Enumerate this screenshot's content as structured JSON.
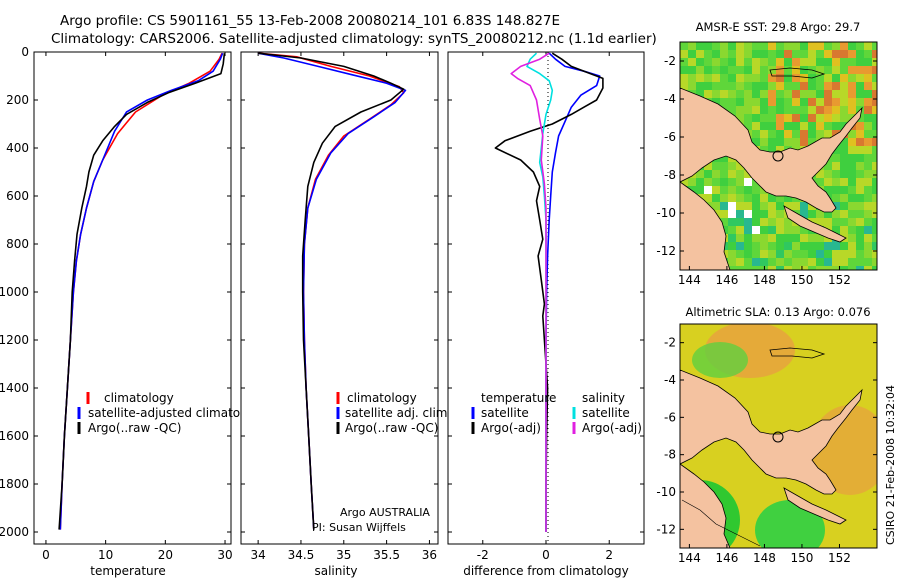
{
  "title_line1": "Argo profile: CS 5901161_55 13-Feb-2008 20080214_101 6.83S 148.827E",
  "title_line2": "Climatology: CARS2006. Satellite-adjusted climatology: synTS_20080212.nc (1.1d earlier)",
  "side_text": "CSIRO 21-Feb-2008 10:32:04",
  "colors": {
    "clim": "#ff0000",
    "sat": "#0000ff",
    "argo": "#000000",
    "sal_sat": "#00e0e0",
    "sal_argo": "#e020e0",
    "land": "#f4c2a0"
  },
  "chart_data": [
    {
      "type": "line",
      "id": "temp",
      "xlabel": "temperature",
      "xlim": [
        -2,
        31
      ],
      "ylim": [
        0,
        2050
      ],
      "xticks": [
        0,
        10,
        20,
        30
      ],
      "yticks": [
        0,
        200,
        400,
        600,
        800,
        1000,
        1200,
        1400,
        1600,
        1800,
        2000
      ],
      "legend": [
        "climatology",
        "satellite-adjusted climatology",
        "Argo(..raw -QC)"
      ],
      "series": [
        {
          "name": "climatology",
          "color": "clim",
          "points": [
            [
              29.5,
              5
            ],
            [
              29.0,
              30
            ],
            [
              27.5,
              80
            ],
            [
              24,
              130
            ],
            [
              19.5,
              180
            ],
            [
              15,
              250
            ],
            [
              12,
              340
            ],
            [
              9.5,
              450
            ],
            [
              8,
              540
            ],
            [
              6.8,
              650
            ],
            [
              5.8,
              760
            ],
            [
              5.1,
              870
            ],
            [
              4.6,
              1000
            ],
            [
              4.1,
              1200
            ],
            [
              3.6,
              1400
            ],
            [
              3.1,
              1600
            ],
            [
              2.7,
              1800
            ],
            [
              2.4,
              1990
            ]
          ]
        },
        {
          "name": "satellite-adjusted climatology",
          "color": "sat",
          "points": [
            [
              29.6,
              5
            ],
            [
              29.2,
              30
            ],
            [
              28,
              80
            ],
            [
              25.5,
              120
            ],
            [
              21,
              160
            ],
            [
              17,
              200
            ],
            [
              13.5,
              250
            ],
            [
              11.5,
              330
            ],
            [
              9.5,
              450
            ],
            [
              8,
              540
            ],
            [
              6.8,
              650
            ],
            [
              5.8,
              760
            ],
            [
              5.1,
              870
            ],
            [
              4.6,
              1000
            ],
            [
              4.1,
              1200
            ],
            [
              3.6,
              1400
            ],
            [
              3.1,
              1600
            ],
            [
              2.7,
              1800
            ],
            [
              2.4,
              1990
            ]
          ]
        },
        {
          "name": "Argo(..raw -QC)",
          "color": "argo",
          "points": [
            [
              29.9,
              5
            ],
            [
              29.7,
              50
            ],
            [
              29.3,
              90
            ],
            [
              25,
              130
            ],
            [
              20.5,
              170
            ],
            [
              17,
              210
            ],
            [
              13.5,
              260
            ],
            [
              11.5,
              310
            ],
            [
              9.5,
              370
            ],
            [
              8,
              430
            ],
            [
              7.2,
              500
            ],
            [
              6.8,
              560
            ],
            [
              6,
              650
            ],
            [
              5.2,
              760
            ],
            [
              4.8,
              870
            ],
            [
              4.4,
              1000
            ],
            [
              4.1,
              1200
            ],
            [
              3.6,
              1400
            ],
            [
              3.1,
              1600
            ],
            [
              2.7,
              1800
            ],
            [
              2.2,
              1990
            ]
          ]
        }
      ]
    },
    {
      "type": "line",
      "id": "sal",
      "xlabel": "salinity",
      "xlim": [
        33.8,
        36.1
      ],
      "ylim": [
        0,
        2050
      ],
      "xticks": [
        34,
        34.5,
        35,
        35.5,
        36
      ],
      "yticks": [
        0,
        200,
        400,
        600,
        800,
        1000,
        1200,
        1400,
        1600,
        1800,
        2000
      ],
      "legend": [
        "climatology",
        "satellite adj. clim.",
        "Argo(..raw -QC)"
      ],
      "annotations": [
        "Argo AUSTRALIA",
        "PI: Susan Wijffels"
      ],
      "series": [
        {
          "name": "climatology",
          "color": "clim",
          "points": [
            [
              34.0,
              5
            ],
            [
              34.45,
              20
            ],
            [
              34.85,
              60
            ],
            [
              35.3,
              100
            ],
            [
              35.65,
              145
            ],
            [
              35.7,
              170
            ],
            [
              35.55,
              220
            ],
            [
              35.3,
              280
            ],
            [
              35.0,
              350
            ],
            [
              34.82,
              430
            ],
            [
              34.67,
              530
            ],
            [
              34.58,
              650
            ],
            [
              34.54,
              800
            ],
            [
              34.53,
              1000
            ],
            [
              34.54,
              1200
            ],
            [
              34.56,
              1400
            ],
            [
              34.59,
              1600
            ],
            [
              34.62,
              1800
            ],
            [
              34.65,
              1990
            ]
          ]
        },
        {
          "name": "satellite adj. clim.",
          "color": "sat",
          "points": [
            [
              34.0,
              5
            ],
            [
              34.3,
              25
            ],
            [
              34.7,
              60
            ],
            [
              35.1,
              95
            ],
            [
              35.5,
              130
            ],
            [
              35.72,
              160
            ],
            [
              35.6,
              210
            ],
            [
              35.35,
              270
            ],
            [
              35.05,
              340
            ],
            [
              34.85,
              420
            ],
            [
              34.68,
              530
            ],
            [
              34.58,
              650
            ],
            [
              34.54,
              800
            ],
            [
              34.53,
              1000
            ],
            [
              34.54,
              1200
            ],
            [
              34.56,
              1400
            ],
            [
              34.59,
              1600
            ],
            [
              34.62,
              1800
            ],
            [
              34.65,
              1990
            ]
          ]
        },
        {
          "name": "Argo(..raw -QC)",
          "color": "argo",
          "points": [
            [
              34.0,
              5
            ],
            [
              34.5,
              25
            ],
            [
              35.0,
              60
            ],
            [
              35.35,
              100
            ],
            [
              35.55,
              130
            ],
            [
              35.7,
              155
            ],
            [
              35.55,
              200
            ],
            [
              35.2,
              250
            ],
            [
              34.9,
              310
            ],
            [
              34.75,
              380
            ],
            [
              34.65,
              460
            ],
            [
              34.58,
              560
            ],
            [
              34.55,
              700
            ],
            [
              34.52,
              850
            ],
            [
              34.52,
              1000
            ],
            [
              34.53,
              1200
            ],
            [
              34.56,
              1400
            ],
            [
              34.59,
              1600
            ],
            [
              34.62,
              1800
            ],
            [
              34.65,
              1990
            ]
          ]
        }
      ]
    },
    {
      "type": "line",
      "id": "diff",
      "xlabel": "difference from climatology",
      "xlim": [
        -3.1,
        3.1
      ],
      "ylim": [
        0,
        2050
      ],
      "xticks": [
        -2,
        0,
        2
      ],
      "yticks": [
        0,
        200,
        400,
        600,
        800,
        1000,
        1200,
        1400,
        1600,
        1800,
        2000
      ],
      "legend_left": [
        "temperature",
        "satellite",
        "Argo(-adj)"
      ],
      "legend_right": [
        "salinity",
        "satellite",
        "Argo(-adj)"
      ],
      "series": [
        {
          "name": "temperature satellite",
          "color": "sat",
          "points": [
            [
              0.1,
              5
            ],
            [
              0.3,
              30
            ],
            [
              0.6,
              60
            ],
            [
              1.2,
              80
            ],
            [
              1.7,
              100
            ],
            [
              1.6,
              140
            ],
            [
              1.1,
              180
            ],
            [
              0.8,
              230
            ],
            [
              0.6,
              290
            ],
            [
              0.4,
              350
            ],
            [
              0.3,
              420
            ],
            [
              0.2,
              500
            ],
            [
              0.15,
              600
            ],
            [
              0.1,
              700
            ],
            [
              0.05,
              850
            ],
            [
              0.02,
              1000
            ],
            [
              0,
              1200
            ],
            [
              0,
              1600
            ],
            [
              0,
              2000
            ]
          ]
        },
        {
          "name": "temperature Argo(-adj)",
          "color": "argo",
          "points": [
            [
              0.2,
              5
            ],
            [
              0.5,
              30
            ],
            [
              0.8,
              60
            ],
            [
              1.4,
              90
            ],
            [
              1.8,
              110
            ],
            [
              1.8,
              150
            ],
            [
              1.6,
              200
            ],
            [
              1.2,
              230
            ],
            [
              0.8,
              260
            ],
            [
              0.2,
              300
            ],
            [
              -0.5,
              330
            ],
            [
              -1.3,
              370
            ],
            [
              -1.6,
              400
            ],
            [
              -0.8,
              450
            ],
            [
              -0.4,
              500
            ],
            [
              -0.2,
              560
            ],
            [
              -0.3,
              620
            ],
            [
              -0.2,
              700
            ],
            [
              -0.1,
              780
            ],
            [
              -0.25,
              850
            ],
            [
              -0.15,
              950
            ],
            [
              -0.05,
              1050
            ],
            [
              -0.1,
              1100
            ],
            [
              -0.05,
              1200
            ],
            [
              0.05,
              1400
            ],
            [
              0.02,
              1600
            ],
            [
              0,
              1800
            ],
            [
              0,
              2000
            ]
          ]
        },
        {
          "name": "salinity satellite",
          "color": "sal_sat",
          "points": [
            [
              -0.3,
              5
            ],
            [
              -0.5,
              30
            ],
            [
              -0.6,
              60
            ],
            [
              -0.2,
              90
            ],
            [
              0.1,
              120
            ],
            [
              0.2,
              160
            ],
            [
              0.15,
              200
            ],
            [
              0,
              260
            ],
            [
              -0.1,
              340
            ],
            [
              -0.15,
              400
            ],
            [
              -0.2,
              460
            ],
            [
              -0.1,
              520
            ],
            [
              -0.05,
              600
            ],
            [
              0,
              700
            ],
            [
              0,
              1000
            ],
            [
              0,
              1500
            ],
            [
              0,
              2000
            ]
          ]
        },
        {
          "name": "salinity Argo(-adj)",
          "color": "sal_argo",
          "points": [
            [
              0.1,
              5
            ],
            [
              -0.2,
              30
            ],
            [
              -0.8,
              60
            ],
            [
              -1.1,
              90
            ],
            [
              -0.9,
              110
            ],
            [
              -0.5,
              140
            ],
            [
              -0.3,
              200
            ],
            [
              -0.2,
              280
            ],
            [
              -0.1,
              350
            ],
            [
              -0.15,
              450
            ],
            [
              -0.05,
              550
            ],
            [
              0,
              650
            ],
            [
              0,
              800
            ],
            [
              0,
              1000
            ],
            [
              0,
              1500
            ],
            [
              0,
              2000
            ]
          ]
        }
      ]
    },
    {
      "type": "heatmap",
      "id": "sst",
      "title": "AMSR-E SST: 29.8 Argo: 29.7",
      "xlim": [
        143.5,
        154
      ],
      "ylim": [
        -13,
        -1
      ],
      "xticks": [
        144,
        146,
        148,
        150,
        152
      ],
      "yticks": [
        -2,
        -4,
        -6,
        -8,
        -10,
        -12
      ],
      "marker": [
        148.83,
        -6.83
      ]
    },
    {
      "type": "heatmap",
      "id": "sla",
      "title": "Altimetric SLA: 0.13 Argo: 0.076",
      "xlim": [
        143.5,
        154
      ],
      "ylim": [
        -13,
        -1
      ],
      "xticks": [
        144,
        146,
        148,
        150,
        152
      ],
      "yticks": [
        -2,
        -4,
        -6,
        -8,
        -10,
        -12
      ],
      "marker": [
        148.83,
        -6.83
      ]
    }
  ]
}
